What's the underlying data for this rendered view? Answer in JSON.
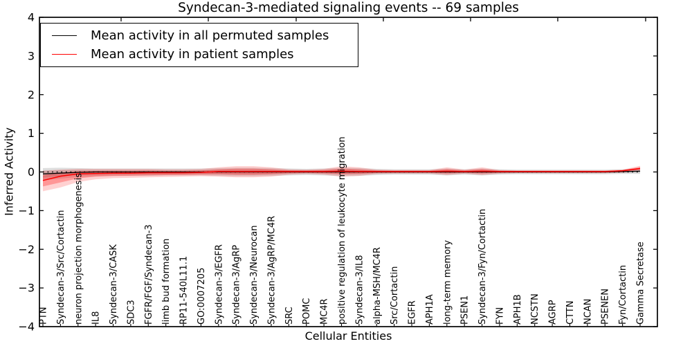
{
  "chart_data": {
    "type": "line",
    "title": "Syndecan-3-mediated signaling events -- 69 samples",
    "xlabel": "Cellular Entities",
    "ylabel": "Inferred Activity",
    "ylim": [
      -4,
      4
    ],
    "y_tick_values": [
      4,
      3,
      2,
      1,
      0,
      -1,
      -2,
      -3,
      -4
    ],
    "y_tick_labels": [
      "4",
      "3",
      "2",
      "1",
      "0",
      "−1",
      "−2",
      "−3",
      "−4"
    ],
    "grid": false,
    "legend": {
      "position": "upper left",
      "entries": [
        {
          "label": "Mean activity in all permuted samples",
          "color": "#000000"
        },
        {
          "label": "Mean activity in patient samples",
          "color": "#ff0000"
        }
      ]
    },
    "zero_line": {
      "y": 0,
      "style": "dotted",
      "color": "#000000"
    },
    "categories": [
      "PTN",
      "Syndecan-3/Src/Cortactin",
      "neuron projection morphogenesis",
      "IL8",
      "Syndecan-3/CASK",
      "SDC3",
      "FGFR/FGF/Syndecan-3",
      "limb bud formation",
      "RP11-540L11.1",
      "GO:0007205",
      "Syndecan-3/EGFR",
      "Syndecan-3/AgRP",
      "Syndecan-3/Neurocan",
      "Syndecan-3/AgRP/MC4R",
      "SRC",
      "POMC",
      "MC4R",
      "positive regulation of leukocyte migration",
      "Syndecan-3/IL8",
      "alpha-MSH/MC4R",
      "Src/Cortactin",
      "EGFR",
      "APH1A",
      "long-term memory",
      "PSEN1",
      "Syndecan-3/Fyn/Cortactin",
      "FYN",
      "APH1B",
      "NCSTN",
      "AGRP",
      "CTTN",
      "NCAN",
      "PSENEN",
      "Fyn/Cortactin",
      "Gamma Secretase"
    ],
    "series": [
      {
        "name": "Mean activity in all permuted samples",
        "color": "#000000",
        "band_fill_outer": "rgba(0,0,0,0.13)",
        "band_fill_inner": "rgba(0,0,0,0.10)",
        "values": [
          -0.05,
          -0.03,
          -0.01,
          0,
          0,
          0,
          0,
          0,
          0,
          0,
          0,
          0,
          0,
          0,
          0,
          0,
          0,
          0,
          0,
          0,
          0,
          0,
          0,
          0,
          0,
          0,
          0,
          0,
          0,
          0,
          0,
          0,
          0,
          0.01,
          0.02
        ],
        "band_upper": [
          0.1,
          0.11,
          0.1,
          0.09,
          0.09,
          0.09,
          0.09,
          0.09,
          0.09,
          0.09,
          0.1,
          0.11,
          0.11,
          0.1,
          0.09,
          0.08,
          0.09,
          0.11,
          0.1,
          0.08,
          0.07,
          0.07,
          0.07,
          0.09,
          0.07,
          0.09,
          0.07,
          0.06,
          0.06,
          0.06,
          0.06,
          0.06,
          0.06,
          0.07,
          0.1
        ],
        "band_lower": [
          -0.22,
          -0.17,
          -0.13,
          -0.11,
          -0.1,
          -0.1,
          -0.1,
          -0.09,
          -0.09,
          -0.09,
          -0.1,
          -0.11,
          -0.11,
          -0.1,
          -0.09,
          -0.08,
          -0.09,
          -0.11,
          -0.1,
          -0.08,
          -0.07,
          -0.07,
          -0.07,
          -0.09,
          -0.07,
          -0.09,
          -0.07,
          -0.06,
          -0.06,
          -0.06,
          -0.06,
          -0.06,
          -0.06,
          -0.05,
          -0.05
        ]
      },
      {
        "name": "Mean activity in patient samples",
        "color": "#ff0000",
        "band_fill_outer": "rgba(255,0,0,0.18)",
        "band_fill_inner": "rgba(255,0,0,0.28)",
        "values": [
          -0.22,
          -0.11,
          -0.05,
          -0.04,
          -0.03,
          -0.03,
          -0.02,
          -0.02,
          -0.02,
          -0.01,
          0.01,
          0.01,
          0.01,
          0.01,
          0.01,
          0.01,
          0.01,
          0.02,
          0.01,
          0.01,
          0.01,
          0.01,
          0.01,
          0.02,
          0.01,
          0.02,
          0.01,
          0.01,
          0.01,
          0.01,
          0.01,
          0.01,
          0.01,
          0.03,
          0.09
        ],
        "band_upper": [
          0.03,
          0.06,
          0.08,
          0.08,
          0.08,
          0.08,
          0.08,
          0.07,
          0.07,
          0.08,
          0.12,
          0.15,
          0.15,
          0.12,
          0.07,
          0.06,
          0.08,
          0.15,
          0.12,
          0.06,
          0.05,
          0.05,
          0.05,
          0.12,
          0.06,
          0.12,
          0.05,
          0.04,
          0.04,
          0.04,
          0.04,
          0.04,
          0.04,
          0.06,
          0.16
        ],
        "band_lower": [
          -0.5,
          -0.4,
          -0.26,
          -0.19,
          -0.16,
          -0.15,
          -0.14,
          -0.13,
          -0.12,
          -0.11,
          -0.12,
          -0.14,
          -0.14,
          -0.12,
          -0.07,
          -0.05,
          -0.07,
          -0.12,
          -0.1,
          -0.05,
          -0.04,
          -0.04,
          -0.04,
          -0.08,
          -0.04,
          -0.08,
          -0.04,
          -0.03,
          -0.03,
          -0.03,
          -0.03,
          -0.03,
          -0.03,
          -0.02,
          0.03
        ]
      }
    ]
  }
}
